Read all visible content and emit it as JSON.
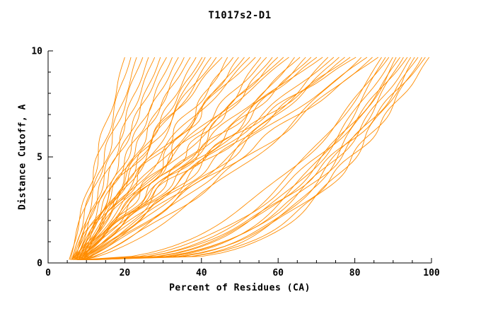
{
  "chart_data": {
    "type": "line",
    "title": "T1017s2-D1",
    "xlabel": "Percent of Residues (CA)",
    "ylabel": "Distance Cutoff, A",
    "xlim": [
      0,
      100
    ],
    "ylim": [
      0,
      10
    ],
    "xticks": [
      0,
      20,
      40,
      60,
      80,
      100
    ],
    "yticks": [
      0,
      5,
      10
    ],
    "x_minor_step": 5,
    "y_minor_step": 1,
    "grid": false,
    "legend": "none",
    "background": "#ffffff",
    "line_color": "#ff8c00",
    "axis_color": "#000000",
    "y_start": 0.15,
    "y_end": 9.7,
    "curve_format": [
      "x_at_bottom",
      "x_at_top",
      "shape_exponent_q",
      "wiggle_amp",
      "wiggle_freq",
      "wiggle_phase"
    ],
    "curves": [
      [
        5.5,
        20.0,
        1.0,
        0.8,
        18,
        0
      ],
      [
        5.8,
        21.6,
        1.1,
        0.8,
        19,
        1.7
      ],
      [
        6.1,
        23.1,
        0.95,
        0.8,
        20,
        3.4
      ],
      [
        6.4,
        24.7,
        1.2,
        0.8,
        21,
        5.1
      ],
      [
        6.7,
        26.2,
        1.0,
        0.8,
        22,
        0.5
      ],
      [
        7.0,
        27.8,
        1.1,
        0.8,
        23,
        2.2
      ],
      [
        7.3,
        29.3,
        0.95,
        0.8,
        24,
        3.9
      ],
      [
        7.6,
        30.9,
        1.2,
        0.8,
        25,
        5.6
      ],
      [
        7.9,
        32.4,
        1.0,
        0.8,
        26,
        1.0
      ],
      [
        8.2,
        34.0,
        1.1,
        0.8,
        27,
        2.7
      ],
      [
        8.5,
        35.5,
        0.95,
        0.8,
        28,
        4.4
      ],
      [
        8.8,
        37.1,
        1.2,
        0.8,
        29,
        6.1
      ],
      [
        9.1,
        38.6,
        1.0,
        0.8,
        30,
        1.5
      ],
      [
        9.4,
        40.2,
        1.1,
        0.8,
        31,
        3.2
      ],
      [
        6.0,
        41.0,
        0.8,
        1.5,
        13,
        0
      ],
      [
        6.1,
        42.5,
        0.95,
        1.5,
        16,
        0.9
      ],
      [
        6.2,
        43.9,
        1.1,
        1.5,
        19,
        1.8
      ],
      [
        6.4,
        45.4,
        1.25,
        1.5,
        22,
        2.7
      ],
      [
        6.5,
        46.8,
        0.7,
        1.5,
        25,
        3.6
      ],
      [
        6.6,
        48.3,
        1.0,
        1.5,
        28,
        4.5
      ],
      [
        6.7,
        49.7,
        0.8,
        1.5,
        31,
        5.4
      ],
      [
        6.8,
        51.2,
        0.95,
        1.5,
        13,
        0.1
      ],
      [
        7.0,
        52.6,
        1.1,
        1.5,
        16,
        1.0
      ],
      [
        7.1,
        54.1,
        1.25,
        1.5,
        19,
        1.9
      ],
      [
        7.2,
        55.5,
        0.7,
        1.5,
        22,
        2.8
      ],
      [
        7.3,
        57.0,
        1.0,
        1.5,
        25,
        3.7
      ],
      [
        7.4,
        58.5,
        0.8,
        1.5,
        28,
        4.6
      ],
      [
        7.6,
        59.9,
        0.95,
        1.5,
        31,
        5.5
      ],
      [
        7.7,
        61.4,
        1.1,
        1.5,
        13,
        0.2
      ],
      [
        7.8,
        62.8,
        1.25,
        1.5,
        16,
        1.1
      ],
      [
        7.9,
        64.3,
        0.7,
        1.5,
        19,
        2.0
      ],
      [
        8.0,
        65.7,
        1.0,
        1.5,
        22,
        2.9
      ],
      [
        8.2,
        67.2,
        0.8,
        1.5,
        25,
        3.8
      ],
      [
        8.3,
        68.6,
        0.95,
        1.5,
        28,
        4.7
      ],
      [
        8.4,
        70.1,
        1.1,
        1.5,
        31,
        5.6
      ],
      [
        8.5,
        71.6,
        1.25,
        1.5,
        13,
        0.3
      ],
      [
        8.6,
        73.0,
        0.7,
        1.5,
        16,
        1.2
      ],
      [
        8.8,
        74.5,
        1.0,
        1.5,
        19,
        2.1
      ],
      [
        8.9,
        75.9,
        0.8,
        1.5,
        22,
        3.0
      ],
      [
        9.0,
        77.4,
        0.95,
        1.5,
        25,
        3.9
      ],
      [
        9.1,
        78.8,
        1.1,
        1.5,
        28,
        4.8
      ],
      [
        9.2,
        80.3,
        1.25,
        1.5,
        31,
        5.7
      ],
      [
        9.4,
        81.7,
        0.7,
        1.5,
        13,
        0.4
      ],
      [
        9.5,
        83.2,
        1.0,
        1.5,
        16,
        1.3
      ],
      [
        9.6,
        84.6,
        0.8,
        1.5,
        19,
        2.2
      ],
      [
        9.7,
        86.1,
        0.95,
        1.5,
        22,
        3.1
      ],
      [
        7.5,
        87.0,
        0.32,
        1.2,
        10,
        0
      ],
      [
        7.85,
        88.0,
        0.25,
        1.2,
        11,
        0.5
      ],
      [
        8.2,
        88.9,
        0.4,
        1.2,
        12,
        1.0
      ],
      [
        8.55,
        89.9,
        0.3,
        1.2,
        13,
        1.5
      ],
      [
        8.9,
        90.8,
        0.22,
        1.2,
        14,
        2.0
      ],
      [
        9.25,
        91.8,
        0.32,
        1.2,
        15,
        2.5
      ],
      [
        9.6,
        92.7,
        0.25,
        1.2,
        16,
        3.0
      ],
      [
        9.95,
        93.7,
        0.4,
        1.2,
        17,
        3.5
      ],
      [
        10.3,
        94.6,
        0.3,
        1.2,
        18,
        4.0
      ],
      [
        10.65,
        95.6,
        0.22,
        1.2,
        19,
        4.5
      ],
      [
        11.0,
        96.5,
        0.32,
        1.2,
        20,
        5.0
      ],
      [
        11.35,
        97.5,
        0.25,
        1.2,
        21,
        5.5
      ],
      [
        11.7,
        98.4,
        0.4,
        1.2,
        22,
        6.0
      ],
      [
        12.05,
        99.4,
        0.3,
        1.2,
        23,
        0.3
      ]
    ]
  }
}
